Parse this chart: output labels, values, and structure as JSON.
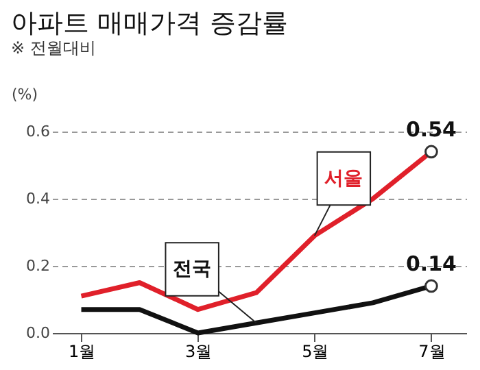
{
  "chart_data": {
    "type": "line",
    "title": "아파트 매매가격 증감률",
    "ylabel": "(%)",
    "x": [
      1,
      2,
      3,
      4,
      5,
      6,
      7
    ],
    "series": [
      {
        "name": "서울",
        "color": "#e0202a",
        "values": [
          0.11,
          0.15,
          0.07,
          0.12,
          0.29,
          0.4,
          0.54
        ]
      },
      {
        "name": "전국",
        "color": "#111111",
        "values": [
          0.07,
          0.07,
          0.0,
          0.03,
          0.06,
          0.09,
          0.14
        ]
      }
    ],
    "xlim": [
      0.5,
      7.6
    ],
    "xticks": [
      {
        "value": 1,
        "label": "1월"
      },
      {
        "value": 3,
        "label": "3월"
      },
      {
        "value": 5,
        "label": "5월"
      },
      {
        "value": 7,
        "label": "7월"
      }
    ],
    "ylim": [
      0,
      0.6
    ],
    "yticks": [
      {
        "value": 0,
        "label": "0.0"
      },
      {
        "value": 0.2,
        "label": "0.2"
      },
      {
        "value": 0.4,
        "label": "0.4"
      },
      {
        "value": 0.6,
        "label": "0.6"
      }
    ],
    "grid": "y",
    "legend": false,
    "marker": "none",
    "line_style": "solid",
    "annotations": [
      "※ 전월대비",
      {
        "text": "0.54",
        "x": 7,
        "y": 0.54
      },
      {
        "text": "0.14",
        "x": 7,
        "y": 0.14
      }
    ]
  }
}
